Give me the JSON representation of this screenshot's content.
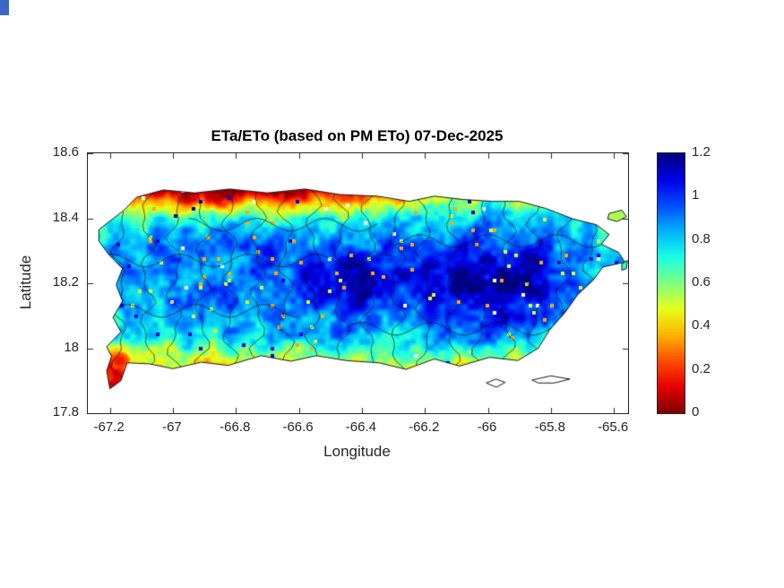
{
  "window": {
    "corner_artifact_color": "#3a66c8"
  },
  "chart_data": {
    "type": "heatmap",
    "title": "ETa/ETo (based on PM ETo) 07-Dec-2025",
    "xlabel": "Longitude",
    "ylabel": "Latitude",
    "value_field": "ETa/ETo ratio",
    "xlim": [
      -67.27,
      -65.555
    ],
    "ylim": [
      17.8,
      18.6
    ],
    "xticks": [
      -67.2,
      -67,
      -66.8,
      -66.6,
      -66.4,
      -66.2,
      -66,
      -65.8,
      -65.6
    ],
    "xtick_labels": [
      "-67.2",
      "-67",
      "-66.8",
      "-66.6",
      "-66.4",
      "-66.2",
      "-66",
      "-65.8",
      "-65.6"
    ],
    "yticks": [
      18.6,
      18.4,
      18.2,
      18,
      17.8
    ],
    "ytick_labels": [
      "18.6",
      "18.4",
      "18.2",
      "18",
      "17.8"
    ],
    "grid_on": false,
    "background": "#ffffff",
    "axis_color": "#262626",
    "colorbar": {
      "min": 0,
      "max": 1.2,
      "location": "right",
      "ticks": [
        0,
        0.2,
        0.4,
        0.6,
        0.8,
        1,
        1.2
      ],
      "tick_labels": [
        "0",
        "0.2",
        "0.4",
        "0.6",
        "0.8",
        "1",
        "1.2"
      ]
    },
    "colormap": [
      {
        "value": 0,
        "color": "#800000"
      },
      {
        "value": 0.12,
        "color": "#e60000"
      },
      {
        "value": 0.24,
        "color": "#ff4d00"
      },
      {
        "value": 0.36,
        "color": "#ffb300"
      },
      {
        "value": 0.48,
        "color": "#e6ff1a"
      },
      {
        "value": 0.6,
        "color": "#80ff80"
      },
      {
        "value": 0.72,
        "color": "#1affe6"
      },
      {
        "value": 0.84,
        "color": "#00b3ff"
      },
      {
        "value": 0.96,
        "color": "#004dff"
      },
      {
        "value": 1.08,
        "color": "#0000e6"
      },
      {
        "value": 1.2,
        "color": "#000080"
      }
    ],
    "boundaries": {
      "style": "municipal",
      "color": "#1a1a1a"
    },
    "region_outline": [
      [
        -67.235,
        18.365
      ],
      [
        -67.155,
        18.425
      ],
      [
        -67.115,
        18.465
      ],
      [
        -67.03,
        18.487
      ],
      [
        -66.93,
        18.478
      ],
      [
        -66.82,
        18.49
      ],
      [
        -66.7,
        18.478
      ],
      [
        -66.58,
        18.49
      ],
      [
        -66.47,
        18.473
      ],
      [
        -66.35,
        18.468
      ],
      [
        -66.25,
        18.452
      ],
      [
        -66.17,
        18.468
      ],
      [
        -66.08,
        18.458
      ],
      [
        -65.985,
        18.452
      ],
      [
        -65.9,
        18.452
      ],
      [
        -65.815,
        18.43
      ],
      [
        -65.73,
        18.398
      ],
      [
        -65.655,
        18.38
      ],
      [
        -65.615,
        18.35
      ],
      [
        -65.64,
        18.32
      ],
      [
        -65.585,
        18.295
      ],
      [
        -65.565,
        18.265
      ],
      [
        -65.635,
        18.25
      ],
      [
        -65.665,
        18.21
      ],
      [
        -65.715,
        18.165
      ],
      [
        -65.755,
        18.11
      ],
      [
        -65.805,
        18.055
      ],
      [
        -65.84,
        18.0
      ],
      [
        -65.905,
        17.962
      ],
      [
        -65.995,
        17.972
      ],
      [
        -66.09,
        17.945
      ],
      [
        -66.17,
        17.967
      ],
      [
        -66.26,
        17.935
      ],
      [
        -66.345,
        17.955
      ],
      [
        -66.45,
        17.962
      ],
      [
        -66.545,
        17.977
      ],
      [
        -66.625,
        17.96
      ],
      [
        -66.72,
        17.977
      ],
      [
        -66.825,
        17.947
      ],
      [
        -66.91,
        17.957
      ],
      [
        -67.0,
        17.937
      ],
      [
        -67.075,
        17.952
      ],
      [
        -67.145,
        17.955
      ],
      [
        -67.165,
        17.9
      ],
      [
        -67.2,
        17.875
      ],
      [
        -67.21,
        17.93
      ],
      [
        -67.195,
        17.975
      ],
      [
        -67.21,
        18.005
      ],
      [
        -67.165,
        18.05
      ],
      [
        -67.19,
        18.095
      ],
      [
        -67.16,
        18.145
      ],
      [
        -67.18,
        18.195
      ],
      [
        -67.16,
        18.245
      ],
      [
        -67.205,
        18.29
      ],
      [
        -67.235,
        18.33
      ]
    ],
    "islets": [
      {
        "fill": null,
        "pts": [
          [
            -66.005,
            17.893
          ],
          [
            -65.975,
            17.905
          ],
          [
            -65.945,
            17.895
          ],
          [
            -65.973,
            17.88
          ]
        ]
      },
      {
        "fill": null,
        "pts": [
          [
            -65.86,
            17.902
          ],
          [
            -65.8,
            17.915
          ],
          [
            -65.74,
            17.905
          ],
          [
            -65.79,
            17.893
          ],
          [
            -65.84,
            17.893
          ]
        ]
      },
      {
        "fill": 0.55,
        "pts": [
          [
            -65.615,
            18.415
          ],
          [
            -65.575,
            18.425
          ],
          [
            -65.56,
            18.405
          ],
          [
            -65.59,
            18.39
          ],
          [
            -65.62,
            18.398
          ]
        ]
      },
      {
        "fill": 0.7,
        "pts": [
          [
            -65.575,
            18.26
          ],
          [
            -65.557,
            18.27
          ],
          [
            -65.56,
            18.245
          ],
          [
            -65.575,
            18.24
          ]
        ]
      }
    ],
    "values_grid": {
      "note": "coarse ETa/ETo field sampled from the raster; null = ocean",
      "lon_start": -67.25,
      "lon_step": 0.07174,
      "lat_start": 18.5,
      "lat_step": 0.06667,
      "values": [
        [
          null,
          0.45,
          0.25,
          0.15,
          0.1,
          0.15,
          0.1,
          0.2,
          0.15,
          0.25,
          0.3,
          0.2,
          0.35,
          0.3,
          0.45,
          0.5,
          0.55,
          0.5,
          0.6,
          0.55,
          0.5,
          0.6,
          null,
          null
        ],
        [
          null,
          0.65,
          0.55,
          0.5,
          0.45,
          0.5,
          0.45,
          0.55,
          0.5,
          0.6,
          0.55,
          0.5,
          0.6,
          0.65,
          0.6,
          0.7,
          0.75,
          0.7,
          0.75,
          0.7,
          0.65,
          0.75,
          0.7,
          null
        ],
        [
          0.7,
          0.8,
          0.75,
          0.85,
          0.8,
          0.75,
          0.85,
          0.8,
          0.75,
          0.85,
          0.8,
          0.85,
          0.8,
          0.9,
          0.85,
          0.8,
          0.85,
          0.9,
          0.85,
          0.8,
          0.85,
          0.8,
          0.75,
          null
        ],
        [
          0.75,
          0.85,
          0.8,
          0.9,
          0.85,
          0.9,
          0.85,
          0.9,
          0.95,
          0.9,
          0.95,
          1.0,
          0.95,
          1.0,
          0.9,
          0.95,
          1.0,
          1.05,
          1.0,
          1.1,
          1.0,
          0.9,
          0.85,
          0.8
        ],
        [
          0.8,
          0.85,
          0.9,
          0.85,
          0.9,
          0.85,
          0.9,
          0.95,
          0.9,
          1.0,
          1.05,
          1.1,
          1.05,
          1.1,
          1.0,
          1.05,
          1.1,
          1.15,
          1.1,
          1.15,
          1.1,
          0.95,
          0.85,
          0.8
        ],
        [
          0.75,
          0.85,
          0.8,
          0.9,
          0.85,
          0.9,
          0.95,
          0.9,
          0.95,
          1.0,
          1.1,
          1.05,
          1.15,
          1.05,
          1.0,
          1.1,
          1.15,
          1.1,
          1.15,
          1.1,
          1.05,
          0.9,
          null,
          null
        ],
        [
          null,
          0.8,
          0.85,
          0.8,
          0.85,
          0.9,
          0.85,
          0.9,
          0.85,
          0.95,
          0.9,
          1.0,
          0.95,
          0.9,
          0.95,
          1.0,
          1.1,
          1.05,
          1.1,
          1.0,
          0.9,
          null,
          null,
          null
        ],
        [
          null,
          0.7,
          0.75,
          0.7,
          0.8,
          0.75,
          0.8,
          0.75,
          0.8,
          0.75,
          0.8,
          0.85,
          0.8,
          0.75,
          0.8,
          0.85,
          0.9,
          0.95,
          0.9,
          0.8,
          null,
          null,
          null,
          null
        ],
        [
          null,
          0.2,
          0.6,
          0.55,
          0.6,
          0.55,
          0.65,
          0.6,
          0.55,
          0.65,
          0.6,
          0.65,
          0.6,
          0.7,
          0.65,
          0.7,
          0.65,
          0.7,
          0.65,
          null,
          null,
          null,
          null,
          null
        ],
        [
          null,
          0.3,
          0.5,
          null,
          null,
          null,
          null,
          null,
          null,
          null,
          null,
          null,
          null,
          null,
          null,
          null,
          null,
          null,
          null,
          null,
          null,
          null,
          null,
          null
        ]
      ]
    }
  }
}
